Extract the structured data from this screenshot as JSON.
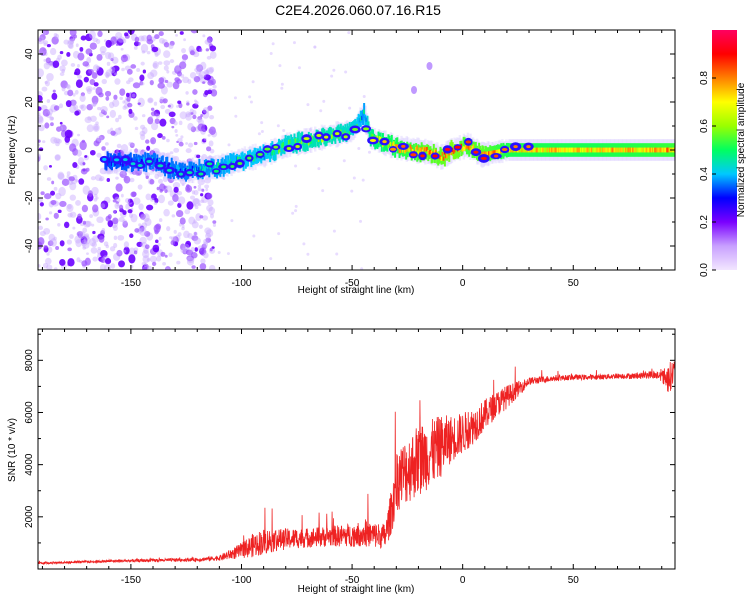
{
  "title": "C2E4.2026.060.07.16.R15",
  "chart_data": [
    {
      "type": "heatmap",
      "xlabel": "Height of straight line (km)",
      "ylabel": "Frequency (Hz)",
      "xlim": [
        -192,
        96
      ],
      "ylim": [
        -50,
        50
      ],
      "xticks": [
        -150,
        -100,
        -50,
        0,
        50
      ],
      "yticks": [
        -40,
        -20,
        0,
        20,
        40
      ],
      "colorbar": {
        "label": "Normalized spectral amplitude",
        "ticks": [
          "0.0",
          "0.2",
          "0.4",
          "0.6",
          "0.8"
        ],
        "tick_values": [
          0.0,
          0.2,
          0.4,
          0.6,
          0.8
        ],
        "range": [
          0,
          1
        ],
        "colormap": [
          "#f2e6ff",
          "#c8a0ff",
          "#7a00ff",
          "#0000ff",
          "#00c8ff",
          "#00ff60",
          "#9aff00",
          "#ffff00",
          "#ff8000",
          "#ff0000",
          "#ff0060"
        ]
      },
      "trace": [
        {
          "x": -162,
          "y": -5,
          "amp": 0.3
        },
        {
          "x": -140,
          "y": -5,
          "amp": 0.35
        },
        {
          "x": -127,
          "y": -9,
          "amp": 0.35
        },
        {
          "x": -110,
          "y": -7,
          "amp": 0.4
        },
        {
          "x": -100,
          "y": -4,
          "amp": 0.45
        },
        {
          "x": -90,
          "y": -2,
          "amp": 0.45
        },
        {
          "x": -80,
          "y": 2,
          "amp": 0.5
        },
        {
          "x": -70,
          "y": 4,
          "amp": 0.55
        },
        {
          "x": -60,
          "y": 6,
          "amp": 0.55
        },
        {
          "x": -50,
          "y": 8,
          "amp": 0.5
        },
        {
          "x": -45,
          "y": 15,
          "amp": 0.4
        },
        {
          "x": -42,
          "y": 5,
          "amp": 0.6
        },
        {
          "x": -30,
          "y": 1,
          "amp": 0.7
        },
        {
          "x": -15,
          "y": -1,
          "amp": 0.8
        },
        {
          "x": -10,
          "y": -3,
          "amp": 0.8
        },
        {
          "x": -5,
          "y": 0,
          "amp": 0.85
        },
        {
          "x": 2,
          "y": 2,
          "amp": 0.75
        },
        {
          "x": 8,
          "y": -2,
          "amp": 0.8
        },
        {
          "x": 20,
          "y": 0,
          "amp": 0.7
        },
        {
          "x": 40,
          "y": 0,
          "amp": 0.7
        },
        {
          "x": 60,
          "y": 0,
          "amp": 0.7
        },
        {
          "x": 80,
          "y": 0,
          "amp": 0.72
        },
        {
          "x": 96,
          "y": 0,
          "amp": 0.75
        }
      ],
      "spurs": [
        {
          "x": -22,
          "y": 25
        },
        {
          "x": -15,
          "y": 35
        }
      ]
    },
    {
      "type": "line",
      "xlabel": "Height of straight line (km)",
      "ylabel": "SNR (10 * v/v)",
      "xlim": [
        -192,
        96
      ],
      "ylim": [
        0,
        9200
      ],
      "xticks": [
        -150,
        -100,
        -50,
        0,
        50
      ],
      "yticks": [
        2000,
        4000,
        6000,
        8000
      ],
      "series": [
        {
          "name": "SNR",
          "color": "#ee2222",
          "x": [
            -192,
            -180,
            -160,
            -140,
            -120,
            -110,
            -100,
            -95,
            -90,
            -85,
            -80,
            -70,
            -60,
            -50,
            -45,
            -40,
            -35,
            -32,
            -30,
            -25,
            -20,
            -15,
            -10,
            -5,
            0,
            5,
            10,
            15,
            20,
            25,
            30,
            40,
            50,
            60,
            70,
            80,
            85,
            90,
            93,
            96
          ],
          "y": [
            230,
            250,
            300,
            330,
            360,
            420,
            700,
            900,
            1050,
            1100,
            1150,
            1200,
            1250,
            1300,
            1350,
            1300,
            1250,
            2300,
            3400,
            3800,
            4200,
            4400,
            4700,
            5000,
            5200,
            5500,
            5900,
            6300,
            6600,
            6900,
            7200,
            7300,
            7350,
            7350,
            7400,
            7400,
            7450,
            7400,
            7300,
            7600
          ],
          "noise": [
            40,
            40,
            50,
            60,
            70,
            100,
            300,
            450,
            500,
            450,
            400,
            380,
            400,
            450,
            500,
            500,
            500,
            900,
            1200,
            1300,
            1400,
            1300,
            1200,
            900,
            800,
            700,
            600,
            500,
            450,
            300,
            150,
            120,
            100,
            100,
            100,
            120,
            150,
            200,
            600,
            500
          ]
        }
      ]
    }
  ]
}
